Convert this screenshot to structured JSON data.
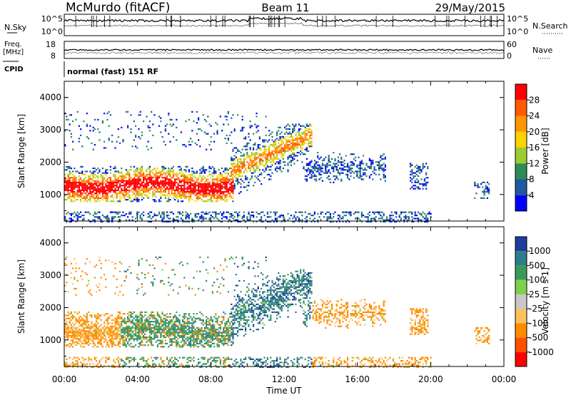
{
  "header": {
    "station": "McMurdo (fitACF)",
    "beam": "Beam 11",
    "date": "29/May/2015"
  },
  "noise_panel": {
    "left_label": "N.Sky",
    "right_label": "N.Search",
    "left_ticks": [
      "10^5",
      "10^0"
    ],
    "right_ticks": [
      "10^5",
      "10^0"
    ]
  },
  "freq_panel": {
    "left_label_line1": "Freq.",
    "left_label_line2": "[MHz]",
    "right_label": "Nave",
    "left_ticks": [
      "18",
      "8"
    ],
    "right_ticks": [
      "60",
      "0"
    ]
  },
  "cpid": {
    "label": "CPID",
    "value": "normal (fast) 151 RF"
  },
  "chart_data": [
    {
      "type": "heatmap",
      "title": "",
      "xlabel": "",
      "ylabel": "Slant Range [km]",
      "xlim": [
        0,
        24
      ],
      "ylim": [
        180,
        4500
      ],
      "y_ticks": [
        "1000",
        "2000",
        "3000",
        "4000"
      ],
      "colorbar": {
        "label": "Power [dB]",
        "ticks": [
          "28",
          "24",
          "20",
          "16",
          "12",
          "8",
          "4"
        ],
        "colors": [
          "#ff0000",
          "#ff5a00",
          "#ff9600",
          "#ffd200",
          "#9acd32",
          "#2e8b57",
          "#1e5aa0",
          "#0000ff"
        ]
      }
    },
    {
      "type": "heatmap",
      "title": "",
      "xlabel": "Time UT",
      "ylabel": "Slant Range [km]",
      "xlim": [
        0,
        24
      ],
      "ylim": [
        180,
        4500
      ],
      "x_ticks": [
        "00:00",
        "04:00",
        "08:00",
        "12:00",
        "16:00",
        "20:00",
        "00:00"
      ],
      "y_ticks": [
        "1000",
        "2000",
        "3000",
        "4000"
      ],
      "colorbar": {
        "label": "Velocity [m s-1]",
        "ticks": [
          "1000",
          "500",
          "100",
          "25",
          "-25",
          "-100",
          "-500",
          "-1000"
        ],
        "colors": [
          "#1e3c9c",
          "#2e7d8c",
          "#3a9a5a",
          "#7fd04a",
          "#c8c8c8",
          "#ffc060",
          "#ff8c00",
          "#ff5000",
          "#ff0000"
        ]
      }
    }
  ]
}
